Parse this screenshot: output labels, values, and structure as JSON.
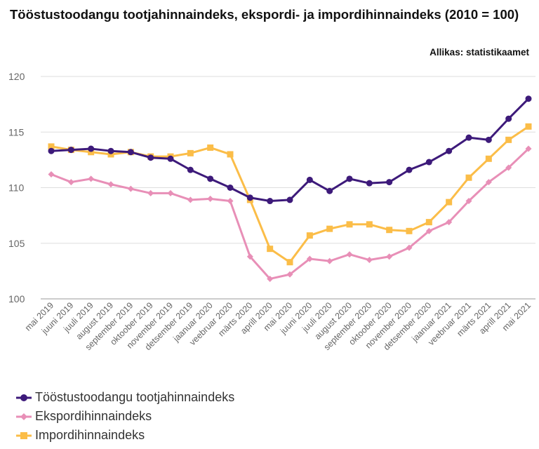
{
  "title": "Tööstustoodangu tootjahinnaindeks, ekspordi- ja impordihinnaindeks (2010 = 100)",
  "source": "Allikas: statistikaamet",
  "chart_data": {
    "type": "line",
    "categories": [
      "mai 2019",
      "juuni 2019",
      "juuli 2019",
      "august 2019",
      "september 2019",
      "oktoober 2019",
      "november 2019",
      "detsember 2019",
      "jaanuar 2020",
      "veebruar 2020",
      "märts 2020",
      "aprill 2020",
      "mai 2020",
      "juuni 2020",
      "juuli 2020",
      "august 2020",
      "september 2020",
      "oktoober 2020",
      "november 2020",
      "detsember 2020",
      "jaanuar 2021",
      "veebruar 2021",
      "märts 2021",
      "aprill 2021",
      "mai 2021"
    ],
    "ylim": [
      100,
      120
    ],
    "yticks": [
      100,
      105,
      110,
      115,
      120
    ],
    "grid": true,
    "legend_position": "bottom-left",
    "series": [
      {
        "name": "Tööstustoodangu tootjahinnaindeks",
        "color": "#3d1a7a",
        "marker": "circle",
        "values": [
          113.3,
          113.4,
          113.5,
          113.3,
          113.2,
          112.7,
          112.6,
          111.6,
          110.8,
          110.0,
          109.1,
          108.8,
          108.9,
          110.7,
          109.7,
          110.8,
          110.4,
          110.5,
          111.6,
          112.3,
          113.3,
          114.5,
          114.3,
          116.2,
          118.0
        ]
      },
      {
        "name": "Ekspordihinnaindeks",
        "color": "#e88fb7",
        "marker": "diamond",
        "values": [
          111.2,
          110.5,
          110.8,
          110.3,
          109.9,
          109.5,
          109.5,
          108.9,
          109.0,
          108.8,
          103.8,
          101.8,
          102.2,
          103.6,
          103.4,
          104.0,
          103.5,
          103.8,
          104.6,
          106.1,
          106.9,
          108.8,
          110.5,
          111.8,
          113.5
        ]
      },
      {
        "name": "Impordihinnaindeks",
        "color": "#fbbd48",
        "marker": "square",
        "values": [
          113.7,
          113.4,
          113.2,
          113.0,
          113.2,
          112.8,
          112.8,
          113.1,
          113.6,
          113.0,
          108.9,
          104.5,
          103.3,
          105.7,
          106.3,
          106.7,
          106.7,
          106.2,
          106.1,
          106.9,
          108.7,
          110.9,
          112.6,
          114.3,
          115.5
        ]
      }
    ]
  }
}
